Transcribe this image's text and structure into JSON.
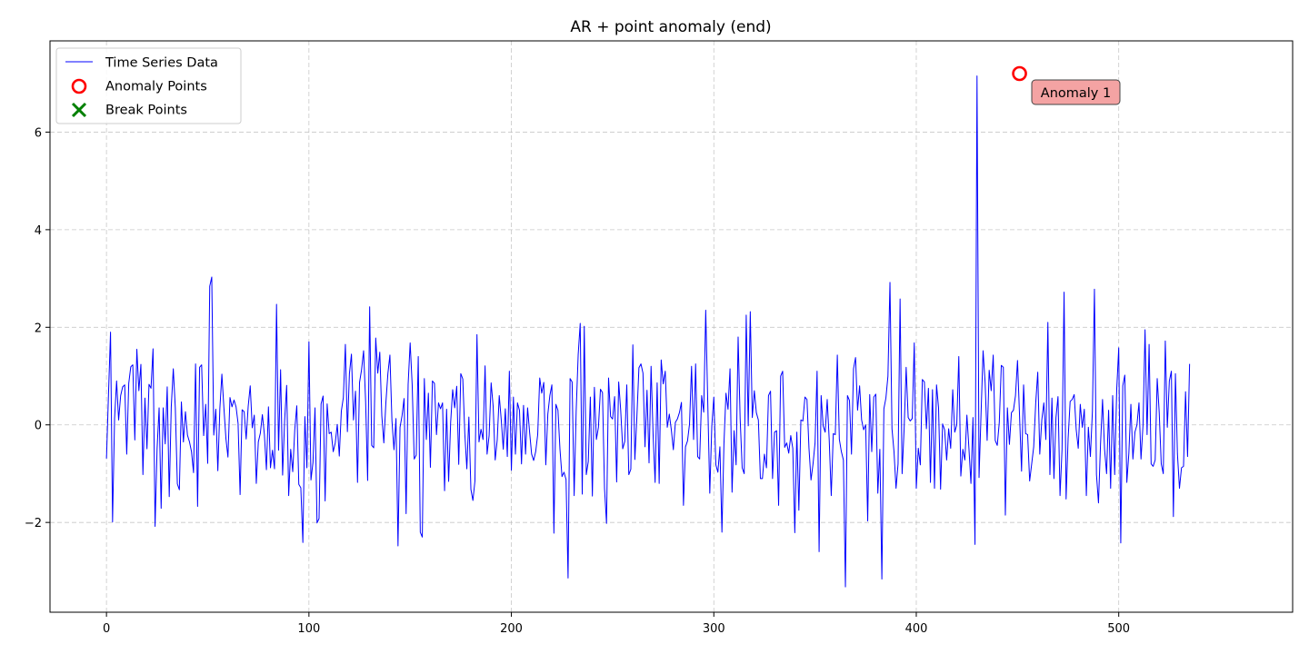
{
  "chart_data": {
    "type": "line",
    "title": "AR + point anomaly (end)",
    "xlabel": "",
    "ylabel": "",
    "xlim": [
      -27.9,
      585.9
    ],
    "ylim": [
      -3.84,
      7.87
    ],
    "x_ticks": [
      0,
      100,
      200,
      300,
      400,
      500
    ],
    "y_ticks": [
      -2,
      0,
      2,
      4,
      6
    ],
    "grid": true,
    "legend_position": "upper-left",
    "colors": {
      "series": "#0000ff",
      "anomaly": "#ff0000",
      "break": "#008000",
      "annotation_fill": "#f4a3a3"
    },
    "series": [
      {
        "name": "Time Series Data",
        "x_start": 0,
        "values": [
          -0.69,
          0.63,
          1.9,
          -1.99,
          0.13,
          0.9,
          0.1,
          0.6,
          0.78,
          0.82,
          -0.6,
          0.85,
          1.19,
          1.23,
          -0.31,
          1.55,
          0.7,
          1.24,
          -1.02,
          0.55,
          -0.49,
          0.83,
          0.75,
          1.56,
          -2.08,
          -0.49,
          0.35,
          -1.71,
          0.35,
          -0.39,
          0.78,
          -1.47,
          0.37,
          1.15,
          0.35,
          -1.21,
          -1.33,
          0.47,
          -0.35,
          0.27,
          -0.21,
          -0.35,
          -0.55,
          -0.98,
          1.25,
          -1.67,
          1.18,
          1.23,
          -0.22,
          0.42,
          -0.79,
          2.84,
          3.03,
          -0.21,
          0.32,
          -0.94,
          0.33,
          1.04,
          0.35,
          -0.28,
          -0.66,
          0.56,
          0.37,
          0.51,
          0.37,
          0.03,
          -1.43,
          0.31,
          0.27,
          -0.29,
          0.38,
          0.8,
          -0.06,
          0.2,
          -1.2,
          -0.35,
          -0.17,
          0.21,
          -0.2,
          -0.92,
          0.37,
          -0.88,
          -0.52,
          -0.9,
          2.47,
          -0.52,
          1.13,
          -1.03,
          0.09,
          0.81,
          -1.45,
          -0.5,
          -0.96,
          -0.1,
          0.39,
          -1.22,
          -1.29,
          -2.41,
          0.17,
          -0.88,
          1.7,
          -1.13,
          -0.77,
          0.35,
          -2.01,
          -1.92,
          0.43,
          0.59,
          -1.56,
          0.43,
          -0.18,
          -0.15,
          -0.55,
          -0.37,
          0.01,
          -0.64,
          0.28,
          0.56,
          1.65,
          -0.14,
          1.05,
          1.45,
          0.1,
          0.69,
          -1.18,
          0.87,
          1.13,
          1.52,
          0.48,
          -1.14,
          2.42,
          -0.42,
          -0.47,
          1.78,
          1.06,
          1.49,
          0.19,
          -0.37,
          0.45,
          1.05,
          1.43,
          0.09,
          -0.51,
          0.13,
          -2.48,
          -0.05,
          0.19,
          0.54,
          -1.82,
          0.83,
          1.68,
          0.82,
          -0.7,
          -0.62,
          1.4,
          -2.2,
          -2.3,
          0.95,
          -0.3,
          0.65,
          -0.87,
          0.9,
          0.85,
          -0.2,
          0.45,
          0.33,
          0.45,
          -1.35,
          0.32,
          -1.16,
          0.05,
          0.72,
          0.35,
          0.79,
          -0.81,
          1.05,
          0.94,
          -0.18,
          -0.9,
          0.16,
          -1.32,
          -1.55,
          -1.15,
          1.85,
          -0.35,
          -0.09,
          -0.3,
          1.21,
          -0.6,
          -0.22,
          0.86,
          0.38,
          -0.72,
          -0.31,
          0.6,
          0.1,
          -0.5,
          0.33,
          -0.65,
          1.1,
          -0.93,
          0.57,
          -0.6,
          0.45,
          0.3,
          -0.8,
          0.4,
          -0.6,
          0.35,
          -0.15,
          -0.6,
          -0.73,
          -0.55,
          -0.2,
          0.96,
          0.65,
          0.87,
          -0.82,
          0.22,
          0.6,
          0.82,
          -2.22,
          0.42,
          0.3,
          -0.5,
          -1.06,
          -0.97,
          -1.12,
          -3.14,
          0.95,
          0.88,
          -1.45,
          0.28,
          1.44,
          2.08,
          -1.42,
          2.02,
          -1.02,
          -0.75,
          0.57,
          -1.46,
          0.77,
          -0.3,
          -0.05,
          0.73,
          0.66,
          -1.3,
          -2.02,
          0.96,
          0.17,
          0.12,
          0.58,
          -1.17,
          0.88,
          0.3,
          -0.49,
          -0.34,
          0.82,
          -1.02,
          -0.91,
          1.64,
          -0.71,
          0.17,
          1.17,
          1.25,
          1.06,
          -0.45,
          0.71,
          -0.78,
          1.2,
          -0.2,
          -1.18,
          0.86,
          -1.2,
          1.33,
          0.84,
          1.1,
          -0.05,
          0.22,
          -0.1,
          -0.51,
          0.05,
          0.12,
          0.25,
          0.46,
          -1.65,
          -0.45,
          -0.33,
          0.02,
          1.2,
          -0.3,
          1.25,
          -0.65,
          -0.7,
          0.6,
          0.26,
          2.35,
          0.46,
          -1.4,
          -0.02,
          0.57,
          -0.82,
          -0.97,
          -0.45,
          -2.2,
          -0.39,
          0.65,
          0.32,
          1.15,
          -1.38,
          -0.12,
          -0.82,
          1.8,
          0.13,
          -0.88,
          -1.0,
          2.25,
          -0.02,
          2.32,
          0.15,
          0.7,
          0.25,
          0.1,
          -1.1,
          -1.1,
          -0.6,
          -0.88,
          0.6,
          0.69,
          -1.1,
          -0.15,
          -0.12,
          -1.65,
          1.0,
          1.1,
          -0.46,
          -0.37,
          -0.58,
          -0.22,
          -0.48,
          -2.21,
          -0.15,
          -1.75,
          0.1,
          0.08,
          0.57,
          0.52,
          -0.48,
          -1.13,
          -0.8,
          -0.37,
          1.1,
          -2.6,
          0.6,
          -0.02,
          -0.15,
          0.52,
          -0.31,
          -1.45,
          -0.18,
          -0.2,
          1.43,
          -0.3,
          -0.55,
          -0.72,
          -3.32,
          0.6,
          0.5,
          -0.6,
          1.15,
          1.38,
          0.3,
          0.8,
          0.1,
          -0.1,
          0.0,
          -1.97,
          0.62,
          -0.55,
          0.57,
          0.63,
          -1.4,
          -0.5,
          -3.16,
          0.33,
          0.55,
          1.0,
          2.92,
          -0.08,
          -0.55,
          -1.3,
          -0.8,
          2.58,
          -1.0,
          -0.08,
          1.18,
          0.15,
          0.08,
          0.13,
          1.68,
          -1.3,
          -0.48,
          -0.82,
          0.93,
          0.88,
          -0.08,
          0.75,
          -1.18,
          0.72,
          -1.3,
          0.82,
          0.35,
          -1.32,
          0.02,
          -0.1,
          -0.72,
          -0.08,
          -0.48,
          0.72,
          -0.15,
          0.0,
          1.4,
          -1.05,
          -0.5,
          -0.72,
          0.2,
          -0.48,
          -1.2,
          0.15,
          -2.45,
          7.15,
          -1.08,
          0.24,
          1.52,
          0.87,
          -0.32,
          1.12,
          0.7,
          1.43,
          -0.32,
          -0.42,
          0.05,
          1.22,
          1.18,
          -1.85,
          0.35,
          -0.4,
          0.25,
          0.3,
          0.6,
          1.32,
          0.2,
          -0.95,
          0.82,
          -0.18,
          -0.2,
          -1.15,
          -0.8,
          -0.45,
          0.45,
          1.08,
          -0.6,
          0.1,
          0.45,
          -0.3,
          2.1,
          -1.02,
          0.55,
          -1.1,
          0.15,
          0.58,
          -1.45,
          -0.5,
          2.72,
          -1.52,
          -0.28,
          0.48,
          0.52,
          0.62,
          -0.1,
          -0.48,
          0.42,
          -0.05,
          0.32,
          -1.45,
          -0.05,
          -0.65,
          0.28,
          2.78,
          -1.02,
          -1.6,
          -0.4,
          0.52,
          -0.5,
          -1.0,
          0.3,
          -1.3,
          0.6,
          -1.02,
          0.72,
          1.58,
          -2.42,
          0.8,
          1.02,
          -1.18,
          -0.58,
          0.42,
          -0.7,
          -0.15,
          0.0,
          0.45,
          -0.7,
          0.0,
          1.95,
          -0.2,
          1.65,
          -0.8,
          -0.85,
          -0.72,
          0.95,
          0.25,
          -0.8,
          -1.0,
          1.72,
          -0.05,
          0.9,
          1.1,
          -1.88,
          1.05,
          -0.6,
          -1.3,
          -0.88,
          -0.85,
          0.68,
          -0.65,
          1.25
        ]
      },
      {
        "name": "Anomaly Points",
        "points": [
          {
            "x": 451,
            "y": 7.2
          }
        ]
      },
      {
        "name": "Break Points",
        "points": []
      }
    ],
    "annotations": [
      {
        "text": "Anomaly 1",
        "x": 451,
        "y": 7.2
      }
    ]
  }
}
